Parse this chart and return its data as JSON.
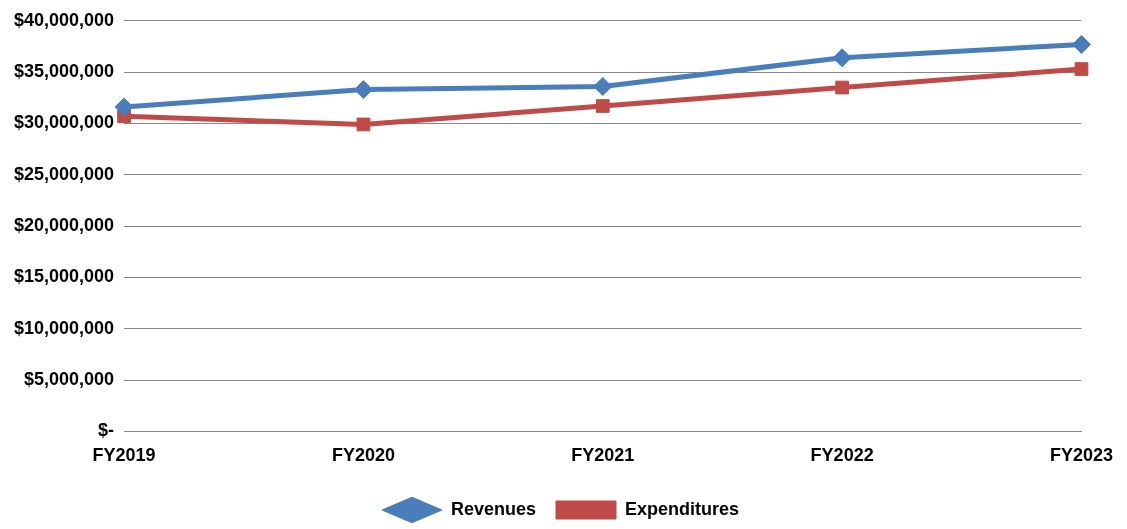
{
  "chart_data": {
    "type": "line",
    "categories": [
      "FY2019",
      "FY2020",
      "FY2021",
      "FY2022",
      "FY2023"
    ],
    "series": [
      {
        "name": "Revenues",
        "color": "#4a7ebb",
        "marker": "diamond",
        "values": [
          31600000,
          33300000,
          33600000,
          36400000,
          37700000
        ]
      },
      {
        "name": "Expenditures",
        "color": "#be4b48",
        "marker": "square",
        "values": [
          30700000,
          29900000,
          31700000,
          33500000,
          35300000
        ]
      }
    ],
    "ylim": [
      0,
      40000000
    ],
    "yticks": [
      {
        "value": 0,
        "label": "$-"
      },
      {
        "value": 5000000,
        "label": "$5,000,000"
      },
      {
        "value": 10000000,
        "label": "$10,000,000"
      },
      {
        "value": 15000000,
        "label": "$15,000,000"
      },
      {
        "value": 20000000,
        "label": "$20,000,000"
      },
      {
        "value": 25000000,
        "label": "$25,000,000"
      },
      {
        "value": 30000000,
        "label": "$30,000,000"
      },
      {
        "value": 35000000,
        "label": "$35,000,000"
      },
      {
        "value": 40000000,
        "label": "$40,000,000"
      }
    ],
    "grid": "y",
    "legend": "bottom",
    "line_style": "solid"
  }
}
